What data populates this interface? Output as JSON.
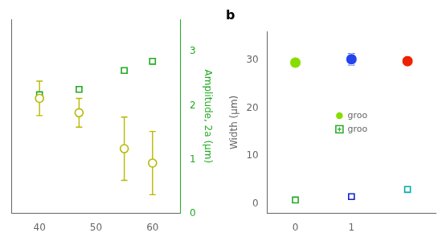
{
  "chart_data": [
    {
      "type": "scatter",
      "xlim": [
        35,
        65
      ],
      "xticks": [
        40,
        50,
        60
      ],
      "ylim": [
        -0.15,
        1.2
      ],
      "yticks": [],
      "y2lim": [
        0,
        3.6
      ],
      "y2ticks": [
        0,
        1,
        2,
        3
      ],
      "y2label": "Amplitude, 2a (μm)",
      "grid": false,
      "series": [
        {
          "x": [
            40,
            47,
            55,
            60
          ],
          "values": [
            0.65,
            0.55,
            0.3,
            0.2
          ],
          "errors": [
            0.12,
            0.1,
            0.22,
            0.22
          ],
          "color": "#b8b800",
          "marker": "circle_open"
        },
        {
          "x": [
            40,
            47,
            55,
            60
          ],
          "values": [
            2.2,
            2.3,
            2.65,
            2.82
          ],
          "errors": [
            0.05,
            0.04,
            0.04,
            0.04
          ],
          "color": "#22aa22",
          "marker": "square_cross",
          "axis": "y2"
        }
      ]
    },
    {
      "type": "scatter",
      "title": "b",
      "xlim": [
        -0.5,
        2.5
      ],
      "xticks": [
        0,
        1
      ],
      "ylim": [
        -2,
        36
      ],
      "yticks": [
        0,
        10,
        20,
        30
      ],
      "ylabel": "Width (μm)",
      "grid": false,
      "legend": "center",
      "series": [
        {
          "name": "groo",
          "x": [
            0,
            1,
            2
          ],
          "values": [
            29.5,
            30.2,
            29.8
          ],
          "errors": [
            0.0,
            1.2,
            0.0
          ],
          "color": "#88dd00",
          "colors": [
            "#88dd00",
            "#2244ee",
            "#ee2200"
          ],
          "marker": "circle"
        },
        {
          "name": "groo",
          "x": [
            0,
            1,
            2
          ],
          "values": [
            0.8,
            1.5,
            3.0
          ],
          "color": "#22aa22",
          "colors": [
            "#22aa22",
            "#1122cc",
            "#00aaaa"
          ],
          "marker": "square_cross"
        }
      ]
    }
  ]
}
